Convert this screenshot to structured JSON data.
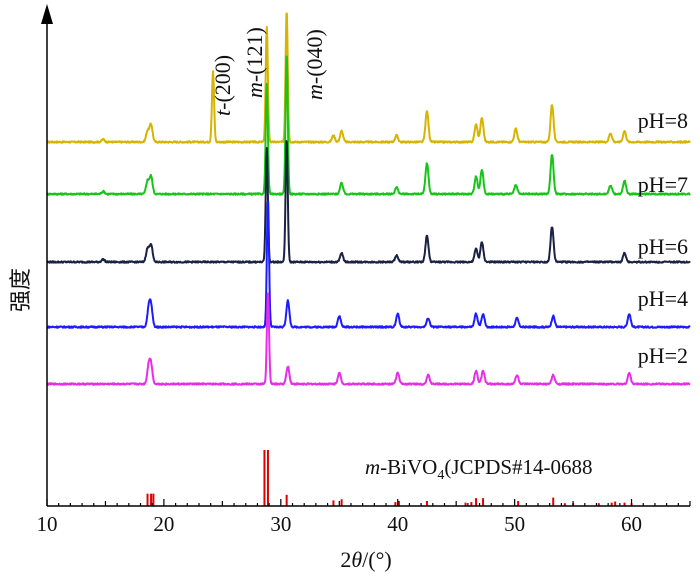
{
  "chart_data": {
    "type": "line",
    "xlabel_parts": {
      "pre": "2",
      "theta": "θ",
      "post": "/(°)"
    },
    "ylabel": "强度",
    "xlim": [
      10,
      65
    ],
    "xticks": [
      10,
      20,
      30,
      40,
      50,
      60
    ],
    "series": [
      {
        "name": "pH=8",
        "color": "#d6b400",
        "peaks": [
          [
            14.8,
            0.6
          ],
          [
            18.6,
            2.5
          ],
          [
            18.9,
            4
          ],
          [
            24.2,
            16
          ],
          [
            28.8,
            26
          ],
          [
            30.5,
            30
          ],
          [
            34.5,
            1.5
          ],
          [
            35.2,
            2.5
          ],
          [
            39.9,
            1.5
          ],
          [
            42.5,
            7
          ],
          [
            46.7,
            4
          ],
          [
            47.2,
            5.5
          ],
          [
            50.1,
            3
          ],
          [
            53.2,
            8.5
          ],
          [
            58.2,
            2
          ],
          [
            59.4,
            2.5
          ]
        ]
      },
      {
        "name": "pH=7",
        "color": "#19c419",
        "peaks": [
          [
            14.8,
            0.6
          ],
          [
            18.6,
            3
          ],
          [
            18.9,
            4
          ],
          [
            28.8,
            25
          ],
          [
            30.5,
            32
          ],
          [
            35.2,
            2.5
          ],
          [
            39.9,
            1.5
          ],
          [
            42.5,
            7
          ],
          [
            46.7,
            4
          ],
          [
            47.2,
            5.5
          ],
          [
            50.1,
            2
          ],
          [
            53.2,
            9
          ],
          [
            58.2,
            2
          ],
          [
            59.4,
            3
          ]
        ]
      },
      {
        "name": "pH=6",
        "color": "#1a2244",
        "peaks": [
          [
            14.8,
            0.6
          ],
          [
            18.6,
            3
          ],
          [
            18.9,
            4
          ],
          [
            28.8,
            26
          ],
          [
            30.5,
            28
          ],
          [
            35.2,
            2
          ],
          [
            39.9,
            1.5
          ],
          [
            42.5,
            6
          ],
          [
            46.7,
            3
          ],
          [
            47.2,
            4.5
          ],
          [
            53.2,
            8
          ],
          [
            59.4,
            2
          ]
        ]
      },
      {
        "name": "pH=4",
        "color": "#1c1cff",
        "peaks": [
          [
            18.7,
            4
          ],
          [
            18.9,
            4.5
          ],
          [
            28.9,
            29
          ],
          [
            30.6,
            6
          ],
          [
            35.0,
            2.5
          ],
          [
            40.0,
            3
          ],
          [
            42.6,
            2
          ],
          [
            46.7,
            3
          ],
          [
            47.3,
            3
          ],
          [
            50.2,
            2
          ],
          [
            53.3,
            2.5
          ],
          [
            59.8,
            3
          ]
        ]
      },
      {
        "name": "pH=2",
        "color": "#e62ee6",
        "peaks": [
          [
            18.7,
            4
          ],
          [
            18.9,
            4
          ],
          [
            28.9,
            21
          ],
          [
            30.6,
            4
          ],
          [
            35.0,
            2.5
          ],
          [
            40.0,
            2.5
          ],
          [
            42.6,
            2
          ],
          [
            46.7,
            3
          ],
          [
            47.3,
            3
          ],
          [
            50.2,
            2
          ],
          [
            53.3,
            2
          ],
          [
            59.8,
            2.5
          ]
        ]
      }
    ],
    "reference": {
      "prefix": "m",
      "name": "-BiVO",
      "subscript": "4",
      "suffix": "(JCPDS#14-0688",
      "color": "#e00000",
      "lines": [
        [
          18.6,
          2.2
        ],
        [
          18.9,
          2.2
        ],
        [
          19.1,
          2.2
        ],
        [
          28.6,
          10
        ],
        [
          28.9,
          10
        ],
        [
          30.5,
          2
        ],
        [
          34.5,
          1
        ],
        [
          35.2,
          1.2
        ],
        [
          39.8,
          0.7
        ],
        [
          40.1,
          0.9
        ],
        [
          42.5,
          0.9
        ],
        [
          45.8,
          0.6
        ],
        [
          46.3,
          0.7
        ],
        [
          46.7,
          1.4
        ],
        [
          47.3,
          1.4
        ],
        [
          50.3,
          0.9
        ],
        [
          53.3,
          1.5
        ],
        [
          54.3,
          0.5
        ],
        [
          55.0,
          0.5
        ],
        [
          57.2,
          0.5
        ],
        [
          58.3,
          0.6
        ],
        [
          58.6,
          0.8
        ],
        [
          59.4,
          0.6
        ],
        [
          60.0,
          0.5
        ]
      ]
    },
    "annotations": [
      {
        "prefix": "t",
        "text": "-(200)"
      },
      {
        "prefix": "m",
        "text": "-(121)"
      },
      {
        "prefix": "m",
        "text": "-(040)"
      }
    ]
  }
}
